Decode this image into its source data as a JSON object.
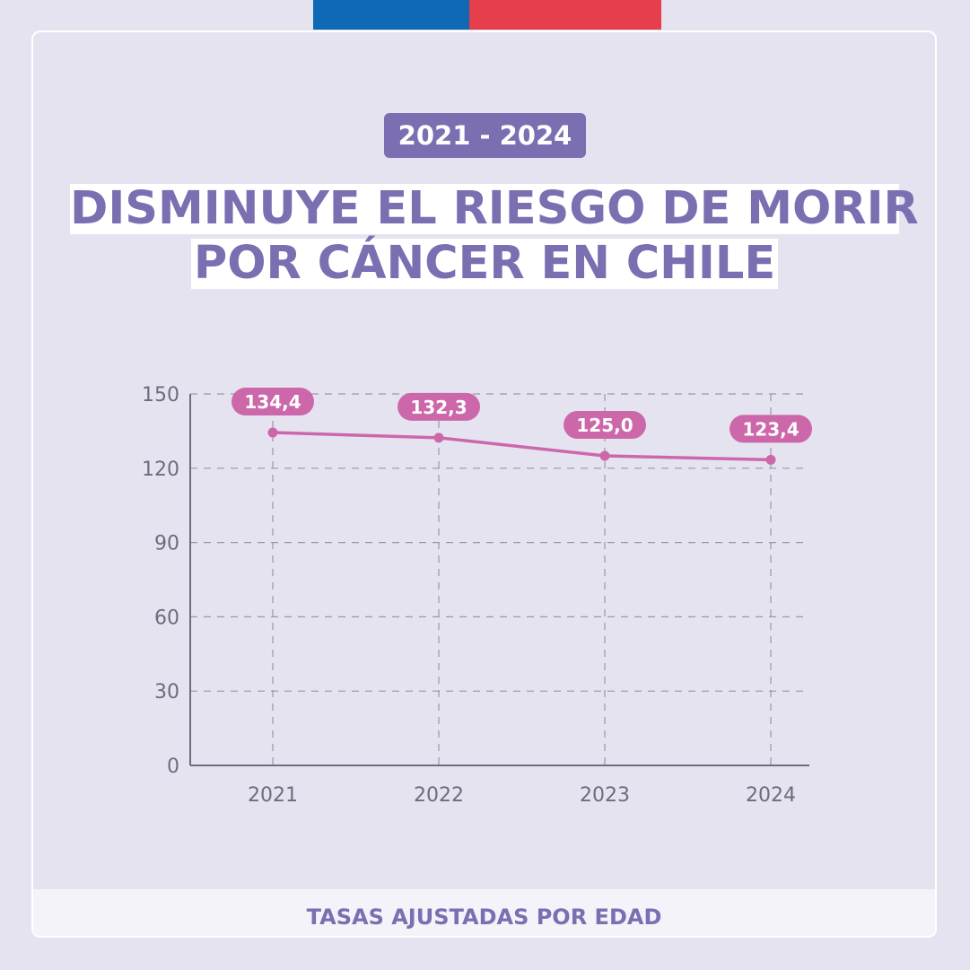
{
  "header": {
    "badge": "2021 - 2024",
    "title_line1": "DISMINUYE EL RIESGO DE MORIR",
    "title_line2": "POR CÁNCER EN CHILE"
  },
  "footer": {
    "label": "TASAS AJUSTADAS POR EDAD"
  },
  "colors": {
    "background": "#e6e3f1",
    "accent_purple": "#7b6fb2",
    "series_pink": "#cc68aa",
    "flag_blue": "#0f69b4",
    "flag_red": "#e53e4d"
  },
  "chart_data": {
    "type": "line",
    "categories": [
      "2021",
      "2022",
      "2023",
      "2024"
    ],
    "series": [
      {
        "values": [
          134.4,
          132.3,
          125.0,
          123.4
        ],
        "labels": [
          "134,4",
          "132,3",
          "125,0",
          "123,4"
        ]
      }
    ],
    "yticks": [
      0,
      30,
      60,
      90,
      120,
      150
    ],
    "ylim": [
      0,
      150
    ],
    "grid": true,
    "title": "",
    "xlabel": "",
    "ylabel": ""
  }
}
